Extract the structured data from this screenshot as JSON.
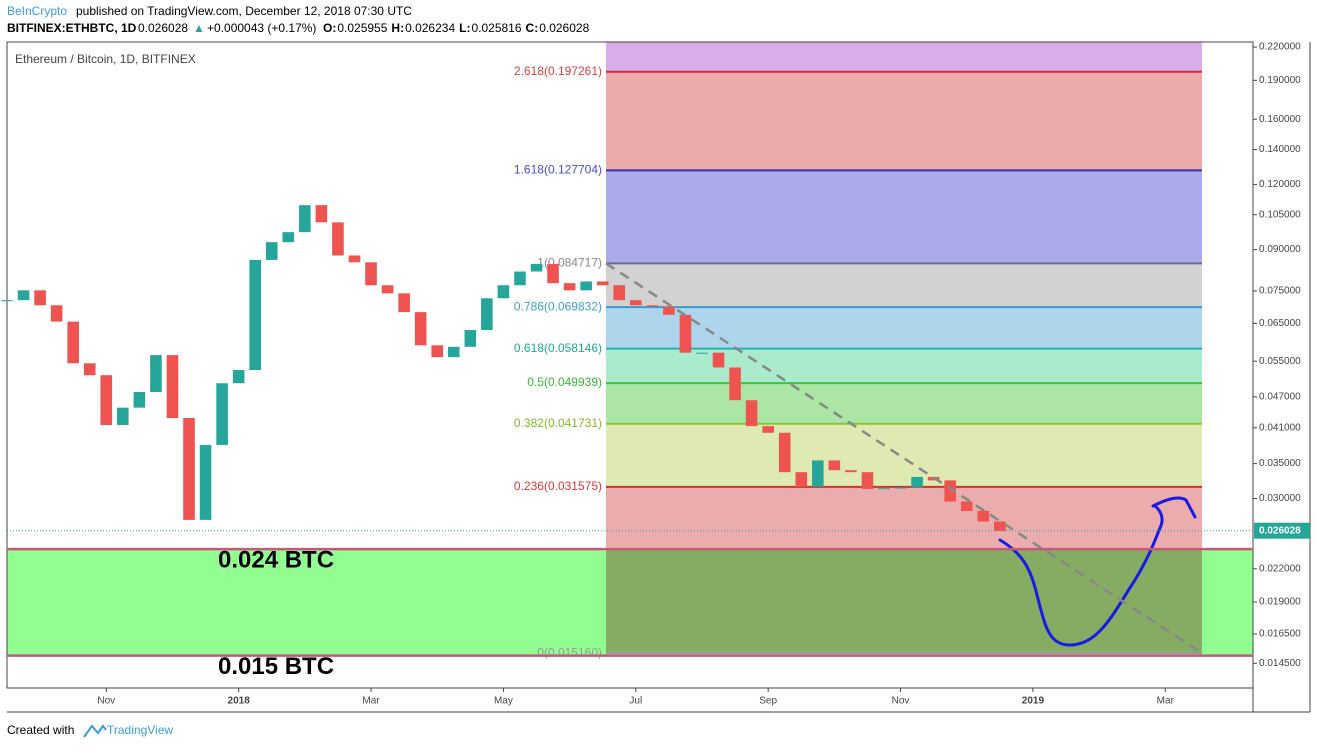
{
  "header": {
    "author": "BeInCrypto",
    "published": "published on TradingView.com, December 12, 2018 07:30 UTC",
    "symbol": "BITFINEX:ETHBTC, 1D",
    "price": "0.026028",
    "arrow": "▲",
    "change": "+0.000043 (+0.17%)",
    "ohlc": [
      "O:",
      "0.025955",
      "H:",
      "0.026234",
      "L:",
      "0.025816",
      "C:",
      "0.026028"
    ]
  },
  "footer": {
    "created": "Created with",
    "brand": "TradingView"
  },
  "chart_data": {
    "type": "candlestick",
    "title": "Ethereum / Bitcoin, 1D, BITFINEX",
    "log_scale": true,
    "up_color": "#26a69a",
    "down_color": "#ef5350",
    "categories": [
      null,
      null,
      null,
      null,
      null,
      null,
      "Nov",
      null,
      null,
      null,
      null,
      null,
      null,
      null,
      "2018",
      null,
      null,
      null,
      null,
      null,
      null,
      null,
      "Mar",
      null,
      null,
      null,
      null,
      null,
      null,
      null,
      "May",
      null,
      null,
      null,
      null,
      null,
      null,
      null,
      "Jul",
      null,
      null,
      null,
      null,
      null,
      null,
      null,
      "Sep",
      null,
      null,
      null,
      null,
      null,
      null,
      null,
      "Nov",
      null,
      null,
      null,
      null,
      null,
      null,
      null,
      "2019",
      null,
      null,
      null,
      null,
      null,
      null,
      null,
      "Mar",
      null,
      null,
      null,
      null,
      null
    ],
    "values": [
      0.072,
      0.0752,
      0.0704,
      0.0655,
      0.0545,
      0.0517,
      0.0415,
      0.0448,
      0.048,
      0.0565,
      0.0428,
      0.0273,
      0.038,
      0.0499,
      0.0529,
      0.086,
      0.093,
      0.0972,
      0.1095,
      0.1015,
      0.0877,
      0.0851,
      0.0769,
      0.0742,
      0.0683,
      0.059,
      0.056,
      0.0586,
      0.0631,
      0.0726,
      0.0769,
      0.0817,
      0.0845,
      0.0776,
      0.0752,
      0.0782,
      0.0769,
      0.072,
      0.0704,
      0.07,
      0.0675,
      0.0571,
      0.0571,
      0.0535,
      0.0463,
      0.0413,
      0.0401,
      0.0337,
      0.0316,
      0.0355,
      0.034,
      0.0337,
      0.0313,
      0.0314,
      0.0315,
      0.033,
      0.0325,
      0.0296,
      0.0284,
      0.0271,
      0.026,
      null,
      null,
      null,
      null,
      null,
      null,
      null,
      null,
      null,
      null,
      null,
      null,
      null,
      null,
      null
    ],
    "ylim": [
      0.013,
      0.225
    ],
    "yticks": [
      {
        "value": 0.22,
        "label": "0.220000"
      },
      {
        "value": 0.19,
        "label": "0.190000"
      },
      {
        "value": 0.16,
        "label": "0.160000"
      },
      {
        "value": 0.14,
        "label": "0.140000"
      },
      {
        "value": 0.12,
        "label": "0.120000"
      },
      {
        "value": 0.105,
        "label": "0.105000"
      },
      {
        "value": 0.09,
        "label": "0.090000"
      },
      {
        "value": 0.075,
        "label": "0.075000"
      },
      {
        "value": 0.065,
        "label": "0.065000"
      },
      {
        "value": 0.055,
        "label": "0.055000"
      },
      {
        "value": 0.047,
        "label": "0.047000"
      },
      {
        "value": 0.041,
        "label": "0.041000"
      },
      {
        "value": 0.035,
        "label": "0.035000"
      },
      {
        "value": 0.03,
        "label": "0.030000"
      },
      {
        "value": 0.022,
        "label": "0.022000"
      },
      {
        "value": 0.019,
        "label": "0.019000"
      },
      {
        "value": 0.0165,
        "label": "0.016500"
      },
      {
        "value": 0.0145,
        "label": "0.014500"
      }
    ],
    "last_price": {
      "value": 0.026028,
      "label": "0.026028",
      "color": "#26a69a"
    },
    "fib_levels": [
      {
        "value": 0.01516,
        "label": "0(0.015160)",
        "color": "#999999",
        "text_color": "#999999",
        "fill": "#eaacac"
      },
      {
        "value": 0.031575,
        "label": "0.236(0.031575)",
        "color": "#d03030",
        "text_color": "#d43b3b",
        "fill": "#dfeab3"
      },
      {
        "value": 0.041731,
        "label": "0.382(0.041731)",
        "color": "#8cc43a",
        "text_color": "#8ab52a",
        "fill": "#abe6a4"
      },
      {
        "value": 0.049939,
        "label": "0.5(0.049939)",
        "color": "#3cc23c",
        "text_color": "#36b536",
        "fill": "#aaeacd"
      },
      {
        "value": 0.058146,
        "label": "0.618(0.058146)",
        "color": "#2bb0b0",
        "text_color": "#22a88f",
        "fill": "#add6ed"
      },
      {
        "value": 0.069832,
        "label": "0.786(0.069832)",
        "color": "#3a9ad0",
        "text_color": "#3d9fd0",
        "fill": "#d2d2d2"
      },
      {
        "value": 0.084717,
        "label": "1(0.084717)",
        "color": "#6a6aa0",
        "text_color": "#888888",
        "fill": "#abaaeb"
      },
      {
        "value": 0.127704,
        "label": "1.618(0.127704)",
        "color": "#3d2f9e",
        "text_color": "#4a4ad0",
        "fill": "#ecabab"
      },
      {
        "value": 0.197261,
        "label": "2.618(0.197261)",
        "color": "#d02a3a",
        "text_color": "#e03c3c",
        "fill": "#d9acec"
      }
    ],
    "zones": [
      {
        "value": 0.024,
        "label": "0.024 BTC"
      },
      {
        "value": 0.015,
        "label": "0.015 BTC"
      }
    ],
    "zone_color": "#92fe92",
    "zone_line_color": "#c8587a"
  }
}
